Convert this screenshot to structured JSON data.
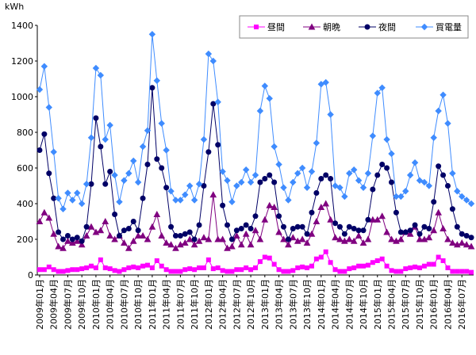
{
  "chart_data": {
    "type": "line",
    "y_label": "kWh",
    "categories": [
      "2009年01月",
      null,
      null,
      "2009年04月",
      null,
      null,
      "2009年07月",
      null,
      null,
      "2009年10月",
      null,
      null,
      "2010年01月",
      null,
      null,
      "2010年04月",
      null,
      null,
      "2010年07月",
      null,
      null,
      "2010年10月",
      null,
      null,
      "2011年01月",
      null,
      null,
      "2011年04月",
      null,
      null,
      "2011年07月",
      null,
      null,
      "2011年10月",
      null,
      null,
      "2012年01月",
      null,
      null,
      "2012年04月",
      null,
      null,
      "2012年07月",
      null,
      null,
      "2012年10月",
      null,
      null,
      "2013年01月",
      null,
      null,
      "2013年04月",
      null,
      null,
      "2013年07月",
      null,
      null,
      "2013年10月",
      null,
      null,
      "2014年01月",
      null,
      null,
      "2014年04月",
      null,
      null,
      "2014年07月",
      null,
      null,
      "2014年10月",
      null,
      null,
      "2015年01月",
      null,
      null,
      "2015年04月",
      null,
      null,
      "2015年07月",
      null,
      null,
      "2015年10月",
      null,
      null,
      "2016年01月",
      null,
      null,
      "2016年04月",
      null,
      null,
      "2016年07月",
      null,
      null
    ],
    "series": [
      {
        "name": "昼間",
        "color": "#ff00ff",
        "marker": "square",
        "values": [
          30,
          30,
          45,
          30,
          20,
          20,
          25,
          30,
          30,
          35,
          40,
          50,
          40,
          85,
          40,
          35,
          25,
          20,
          30,
          40,
          45,
          40,
          50,
          55,
          40,
          80,
          50,
          30,
          20,
          20,
          20,
          30,
          35,
          30,
          40,
          40,
          85,
          35,
          40,
          25,
          20,
          20,
          30,
          30,
          40,
          30,
          40,
          75,
          100,
          95,
          60,
          30,
          20,
          20,
          25,
          40,
          45,
          40,
          50,
          90,
          100,
          130,
          70,
          30,
          20,
          20,
          35,
          40,
          50,
          50,
          55,
          70,
          80,
          90,
          50,
          25,
          20,
          20,
          35,
          40,
          45,
          40,
          50,
          60,
          60,
          100,
          80,
          40,
          20,
          20,
          20,
          20,
          15
        ]
      },
      {
        "name": "朝晩",
        "color": "#800080",
        "marker": "triangle",
        "values": [
          300,
          350,
          320,
          230,
          160,
          150,
          190,
          180,
          190,
          170,
          220,
          270,
          240,
          250,
          300,
          220,
          200,
          220,
          180,
          150,
          190,
          220,
          220,
          200,
          270,
          340,
          220,
          180,
          170,
          150,
          170,
          180,
          200,
          170,
          190,
          210,
          200,
          450,
          200,
          200,
          150,
          160,
          220,
          170,
          230,
          170,
          250,
          200,
          310,
          390,
          380,
          240,
          200,
          170,
          210,
          190,
          200,
          180,
          230,
          300,
          380,
          400,
          310,
          210,
          200,
          190,
          200,
          190,
          220,
          180,
          200,
          310,
          310,
          330,
          240,
          200,
          190,
          200,
          240,
          230,
          270,
          200,
          200,
          210,
          250,
          350,
          260,
          200,
          180,
          170,
          180,
          170,
          160
        ]
      },
      {
        "name": "夜間",
        "color": "#000066",
        "marker": "circle",
        "values": [
          700,
          790,
          570,
          430,
          240,
          200,
          220,
          200,
          210,
          190,
          270,
          510,
          880,
          720,
          510,
          580,
          340,
          220,
          250,
          260,
          300,
          250,
          430,
          620,
          1050,
          650,
          600,
          490,
          270,
          220,
          220,
          230,
          240,
          200,
          280,
          500,
          690,
          960,
          730,
          390,
          280,
          200,
          250,
          260,
          280,
          260,
          330,
          520,
          540,
          560,
          520,
          330,
          270,
          200,
          260,
          270,
          270,
          230,
          350,
          460,
          540,
          560,
          540,
          290,
          270,
          230,
          270,
          260,
          250,
          250,
          310,
          480,
          560,
          620,
          600,
          520,
          350,
          240,
          240,
          250,
          280,
          230,
          270,
          260,
          410,
          610,
          560,
          500,
          370,
          270,
          230,
          220,
          210
        ]
      },
      {
        "name": "買電量",
        "color": "#3f8cff",
        "marker": "diamond",
        "values": [
          1040,
          1170,
          940,
          690,
          430,
          370,
          460,
          420,
          460,
          400,
          510,
          770,
          1160,
          1120,
          760,
          840,
          560,
          410,
          530,
          570,
          640,
          520,
          720,
          810,
          1350,
          1090,
          850,
          700,
          470,
          420,
          420,
          450,
          500,
          420,
          510,
          760,
          1240,
          1200,
          970,
          580,
          530,
          410,
          500,
          520,
          590,
          520,
          560,
          920,
          1060,
          990,
          720,
          620,
          490,
          420,
          520,
          570,
          600,
          490,
          580,
          740,
          1070,
          1080,
          900,
          500,
          490,
          440,
          570,
          590,
          530,
          490,
          570,
          780,
          1020,
          1050,
          760,
          680,
          440,
          440,
          470,
          560,
          630,
          530,
          520,
          500,
          770,
          920,
          1010,
          850,
          570,
          470,
          440,
          420,
          400
        ]
      }
    ],
    "ylim": [
      0,
      1400
    ],
    "yticks": [
      0,
      200,
      400,
      600,
      800,
      1000,
      1200,
      1400
    ],
    "grid": false
  }
}
